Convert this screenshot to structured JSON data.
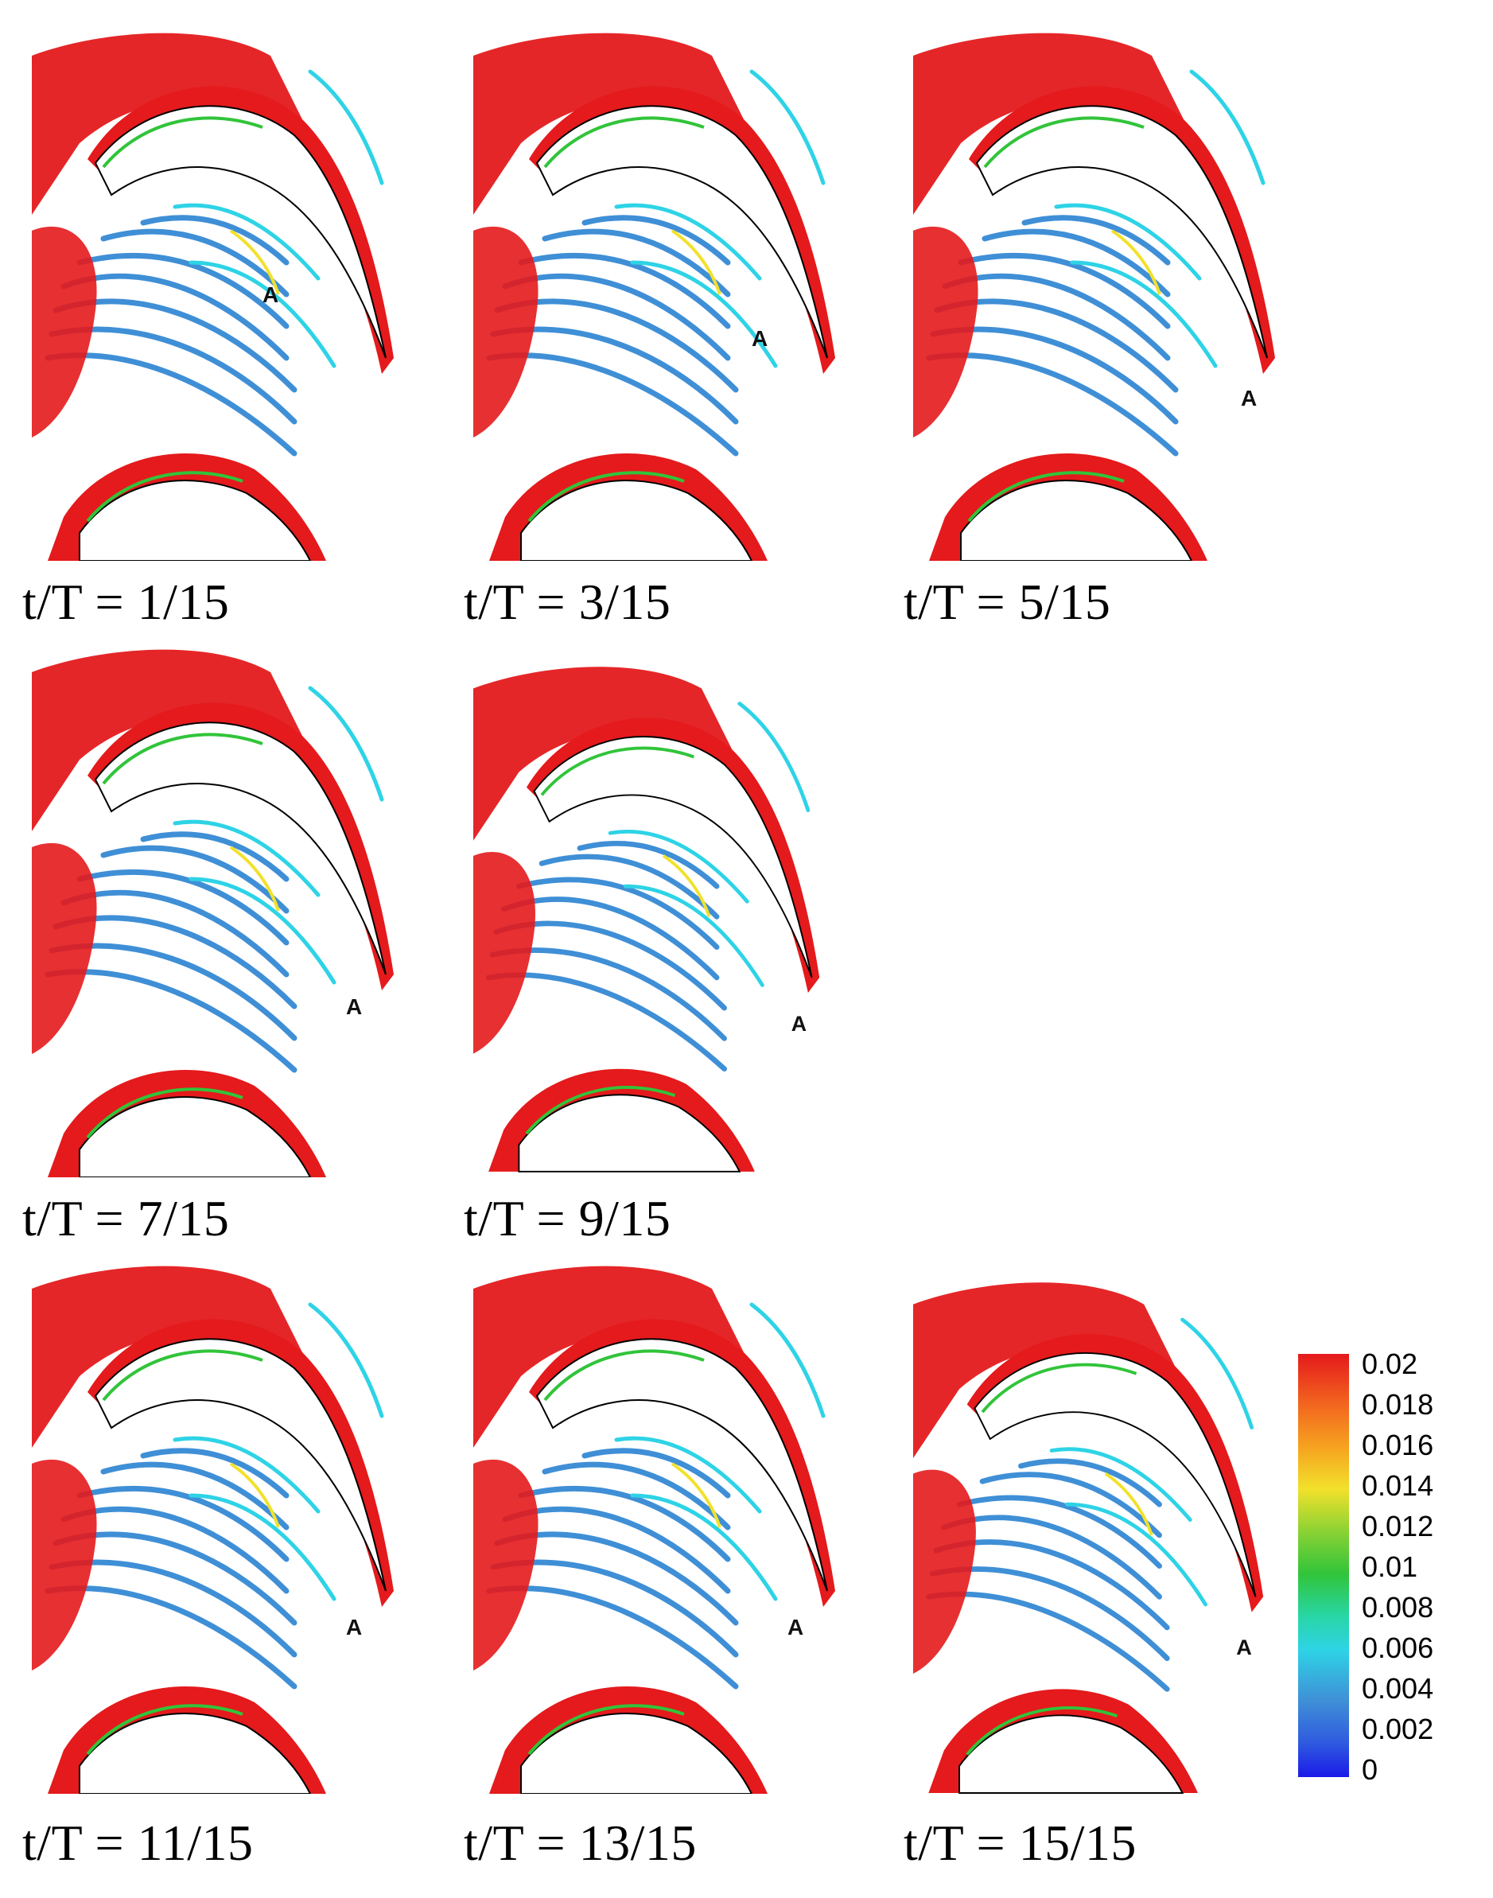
{
  "colors": {
    "red": "#e41a1c",
    "blue": "#3f8fd6",
    "cyan": "#2ed3e6",
    "green": "#31c43a",
    "yellow": "#f2e12b",
    "blade": "#ffffff"
  },
  "panels": [
    {
      "caption": "t/T = 1/15",
      "marker": "A",
      "image": "vortex-isosurface-snapshot"
    },
    {
      "caption": "t/T = 3/15",
      "marker": "A",
      "image": "vortex-isosurface-snapshot"
    },
    {
      "caption": "t/T = 5/15",
      "marker": "A",
      "image": "vortex-isosurface-snapshot"
    },
    {
      "caption": "t/T = 7/15",
      "marker": "A",
      "image": "vortex-isosurface-snapshot"
    },
    {
      "caption": "t/T = 9/15",
      "marker": "A",
      "image": "vortex-isosurface-snapshot"
    },
    {
      "caption": "t/T = 11/15",
      "marker": "A",
      "image": "vortex-isosurface-snapshot"
    },
    {
      "caption": "t/T = 13/15",
      "marker": "A",
      "image": "vortex-isosurface-snapshot"
    },
    {
      "caption": "t/T = 15/15",
      "marker": "A",
      "image": "vortex-isosurface-snapshot"
    }
  ],
  "colorbar": {
    "labels": [
      "0.02",
      "0.018",
      "0.016",
      "0.014",
      "0.012",
      "0.01",
      "0.008",
      "0.006",
      "0.004",
      "0.002",
      "0"
    ],
    "min": 0,
    "max": 0.02
  }
}
